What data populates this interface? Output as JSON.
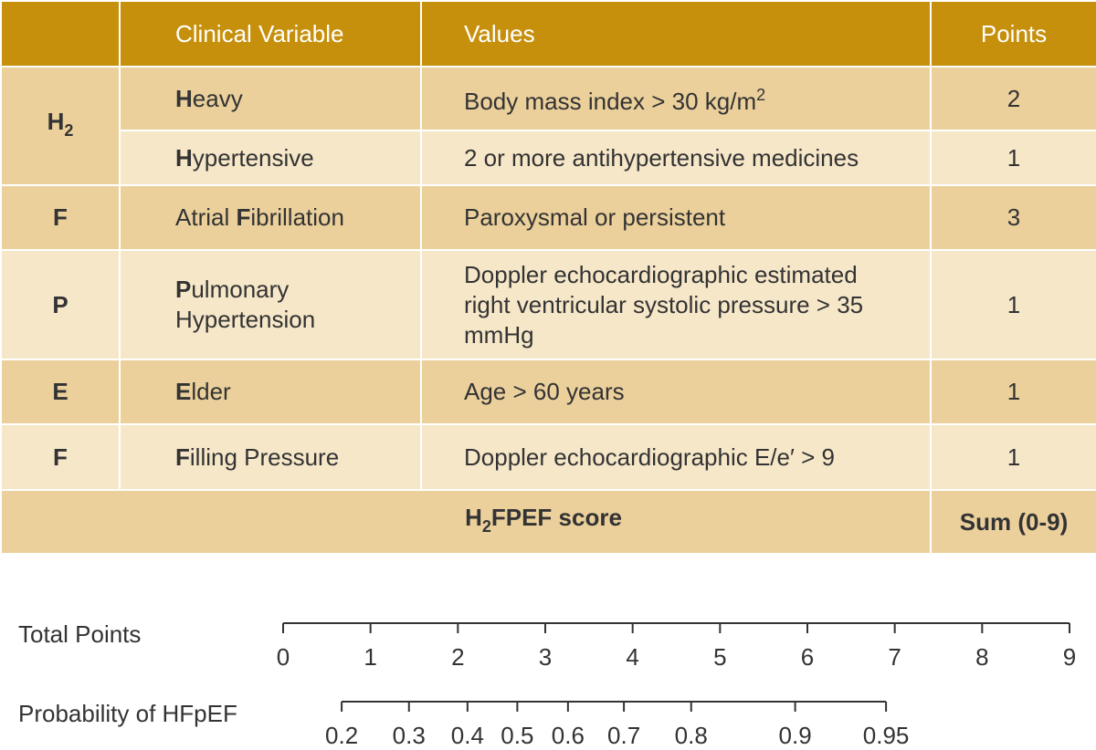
{
  "table": {
    "header": [
      "Clinical Variable",
      "Values",
      "Points"
    ],
    "groups": [
      {
        "letter": [
          {
            "text": "H"
          },
          {
            "text": "2",
            "style": "sub"
          }
        ],
        "rows": [
          {
            "variable": [
              {
                "text": "H",
                "style": "b"
              },
              {
                "text": "eavy"
              }
            ],
            "values": [
              {
                "text": "Body mass index > 30 kg/m"
              },
              {
                "text": "2",
                "style": "sup"
              }
            ],
            "points": 2
          },
          {
            "variable": [
              {
                "text": "H",
                "style": "b"
              },
              {
                "text": "ypertensive"
              }
            ],
            "values": [
              {
                "text": "2 or more antihypertensive medicines"
              }
            ],
            "points": 1
          }
        ]
      },
      {
        "letter": [
          {
            "text": "F"
          }
        ],
        "rows": [
          {
            "variable": [
              {
                "text": "Atrial "
              },
              {
                "text": "F",
                "style": "b"
              },
              {
                "text": "ibrillation"
              }
            ],
            "values": [
              {
                "text": "Paroxysmal or persistent"
              }
            ],
            "points": 3
          }
        ]
      },
      {
        "letter": [
          {
            "text": "P"
          }
        ],
        "rows": [
          {
            "variable": [
              {
                "text": "P",
                "style": "b"
              },
              {
                "text": "ulmonary Hypertension"
              }
            ],
            "values": [
              {
                "text": "Doppler echocardiographic estimated right ventricular systolic pressure > 35 mmHg"
              }
            ],
            "points": 1
          }
        ]
      },
      {
        "letter": [
          {
            "text": "E"
          }
        ],
        "rows": [
          {
            "variable": [
              {
                "text": "E",
                "style": "b"
              },
              {
                "text": "lder"
              }
            ],
            "values": [
              {
                "text": "Age > 60 years"
              }
            ],
            "points": 1
          }
        ]
      },
      {
        "letter": [
          {
            "text": "F"
          }
        ],
        "rows": [
          {
            "variable": [
              {
                "text": "F",
                "style": "b"
              },
              {
                "text": "illing Pressure"
              }
            ],
            "values": [
              {
                "text": "Doppler echocardiographic E/e′ > 9"
              }
            ],
            "points": 1
          }
        ]
      }
    ],
    "footer": {
      "label": [
        {
          "text": "H"
        },
        {
          "text": "2",
          "style": "sub"
        },
        {
          "text": "FPEF score"
        }
      ],
      "points": "Sum (0-9)"
    }
  },
  "nomogram": {
    "points_axis": {
      "label": "Total Points",
      "xlim": [
        0,
        9
      ],
      "xticks": [
        0,
        1,
        2,
        3,
        4,
        5,
        6,
        7,
        8,
        9
      ]
    },
    "probability_axis": {
      "label": "Probability of HFpEF",
      "ticks": [
        {
          "value": 0.2,
          "points": 0.67
        },
        {
          "value": 0.3,
          "points": 1.44
        },
        {
          "value": 0.4,
          "points": 2.11
        },
        {
          "value": 0.5,
          "points": 2.68
        },
        {
          "value": 0.6,
          "points": 3.26
        },
        {
          "value": 0.7,
          "points": 3.9
        },
        {
          "value": 0.8,
          "points": 4.67
        },
        {
          "value": 0.9,
          "points": 5.86
        },
        {
          "value": 0.95,
          "points": 6.9
        }
      ]
    }
  }
}
